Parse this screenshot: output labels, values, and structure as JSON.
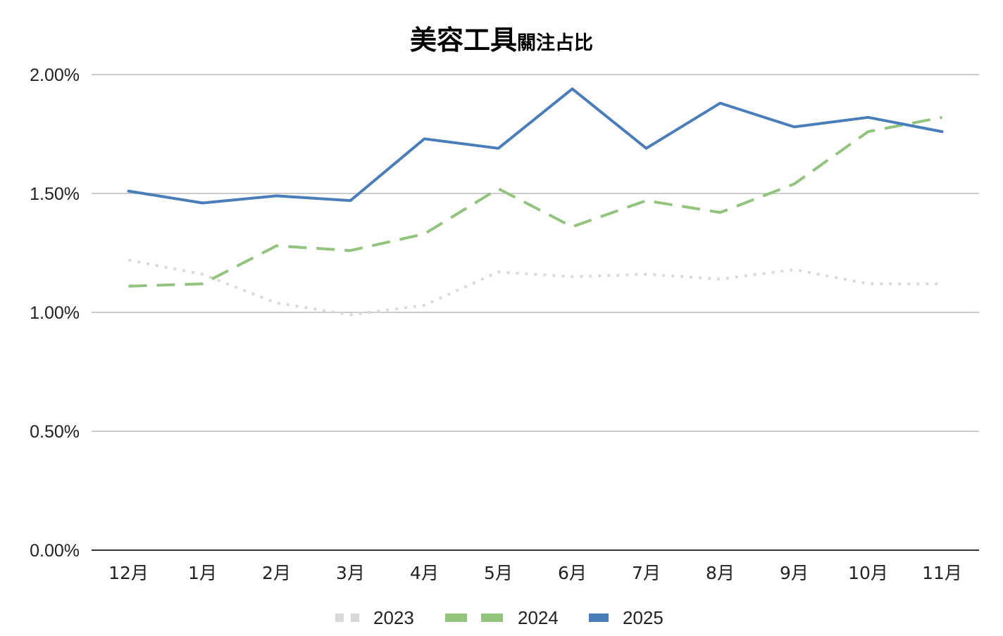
{
  "chart_data": {
    "type": "line",
    "title": "美容工具",
    "title_suffix": "關注占比",
    "categories": [
      "12月",
      "1月",
      "2月",
      "3月",
      "4月",
      "5月",
      "6月",
      "7月",
      "8月",
      "9月",
      "10月",
      "11月"
    ],
    "y_ticks": [
      "0.00%",
      "0.50%",
      "1.00%",
      "1.50%",
      "2.00%"
    ],
    "ylim": [
      0,
      0.02
    ],
    "grid": true,
    "legend_position": "bottom",
    "series": [
      {
        "name": "2023",
        "color": "#d9d9d9",
        "style": "dotted",
        "values": [
          0.0122,
          0.0116,
          0.0104,
          0.0099,
          0.0103,
          0.0117,
          0.0115,
          0.0116,
          0.0114,
          0.0118,
          0.0112,
          0.0112
        ]
      },
      {
        "name": "2024",
        "color": "#93c47d",
        "style": "dashed",
        "values": [
          0.0111,
          0.0112,
          0.0128,
          0.0126,
          0.0133,
          0.0152,
          0.0136,
          0.0147,
          0.0142,
          0.0154,
          0.0176,
          0.0182
        ]
      },
      {
        "name": "2025",
        "color": "#4a7ebb",
        "style": "solid",
        "values": [
          0.0151,
          0.0146,
          0.0149,
          0.0147,
          0.0173,
          0.0169,
          0.0194,
          0.0169,
          0.0188,
          0.0178,
          0.0182,
          0.0176
        ]
      }
    ]
  }
}
